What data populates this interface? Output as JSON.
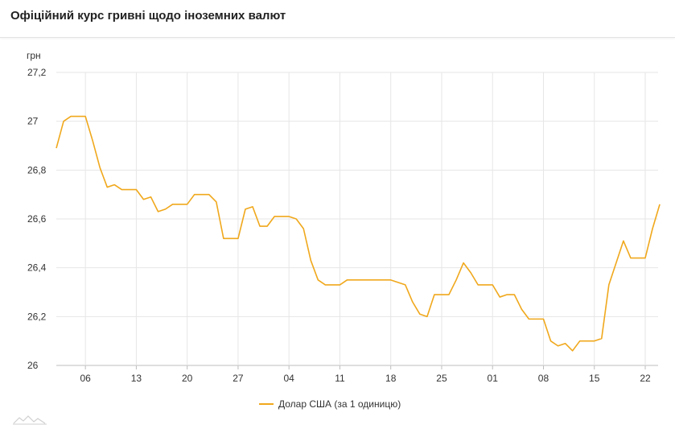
{
  "header": {
    "title": "Офіційний курс гривні щодо іноземних валют"
  },
  "colors": {
    "series": "#F0A81C",
    "grid": "#e6e6e6",
    "baseline": "#bdbdbd"
  },
  "icons": {
    "brand": "mountain-line-icon"
  },
  "chart_data": {
    "type": "line",
    "title": "Офіційний курс гривні щодо іноземних валют",
    "ylabel": "грн",
    "xlabel": "",
    "ylim": [
      26,
      27.2
    ],
    "yticks": [
      "27,2",
      "27",
      "26,8",
      "26,6",
      "26,4",
      "26,2",
      "26"
    ],
    "ytick_values": [
      27.2,
      27.0,
      26.8,
      26.6,
      26.4,
      26.2,
      26.0
    ],
    "xlim": [
      0,
      81
    ],
    "xticks": [
      {
        "label": "06",
        "index": 4
      },
      {
        "label": "13",
        "index": 11
      },
      {
        "label": "20",
        "index": 18
      },
      {
        "label": "27",
        "index": 25
      },
      {
        "label": "04",
        "index": 32
      },
      {
        "label": "11",
        "index": 39
      },
      {
        "label": "18",
        "index": 46
      },
      {
        "label": "25",
        "index": 53
      },
      {
        "label": "01",
        "index": 60
      },
      {
        "label": "08",
        "index": 67
      },
      {
        "label": "15",
        "index": 74
      },
      {
        "label": "22",
        "index": 81
      }
    ],
    "grid": true,
    "legend_position": "bottom-center",
    "series": [
      {
        "name": "Долар США (за 1 одиницю)",
        "values": [
          26.89,
          27.0,
          27.02,
          27.02,
          27.02,
          26.92,
          26.81,
          26.73,
          26.74,
          26.72,
          26.72,
          26.72,
          26.68,
          26.69,
          26.63,
          26.64,
          26.66,
          26.66,
          26.66,
          26.7,
          26.7,
          26.7,
          26.67,
          26.52,
          26.52,
          26.52,
          26.64,
          26.65,
          26.57,
          26.57,
          26.61,
          26.61,
          26.61,
          26.6,
          26.56,
          26.43,
          26.35,
          26.33,
          26.33,
          26.33,
          26.35,
          26.35,
          26.35,
          26.35,
          26.35,
          26.35,
          26.35,
          26.34,
          26.33,
          26.26,
          26.21,
          26.2,
          26.29,
          26.29,
          26.29,
          26.35,
          26.42,
          26.38,
          26.33,
          26.33,
          26.33,
          26.28,
          26.29,
          26.29,
          26.23,
          26.19,
          26.19,
          26.19,
          26.1,
          26.08,
          26.09,
          26.06,
          26.1,
          26.1,
          26.1,
          26.11,
          26.33,
          26.42,
          26.51,
          26.44,
          26.44,
          26.44,
          26.56,
          26.66
        ]
      }
    ]
  }
}
